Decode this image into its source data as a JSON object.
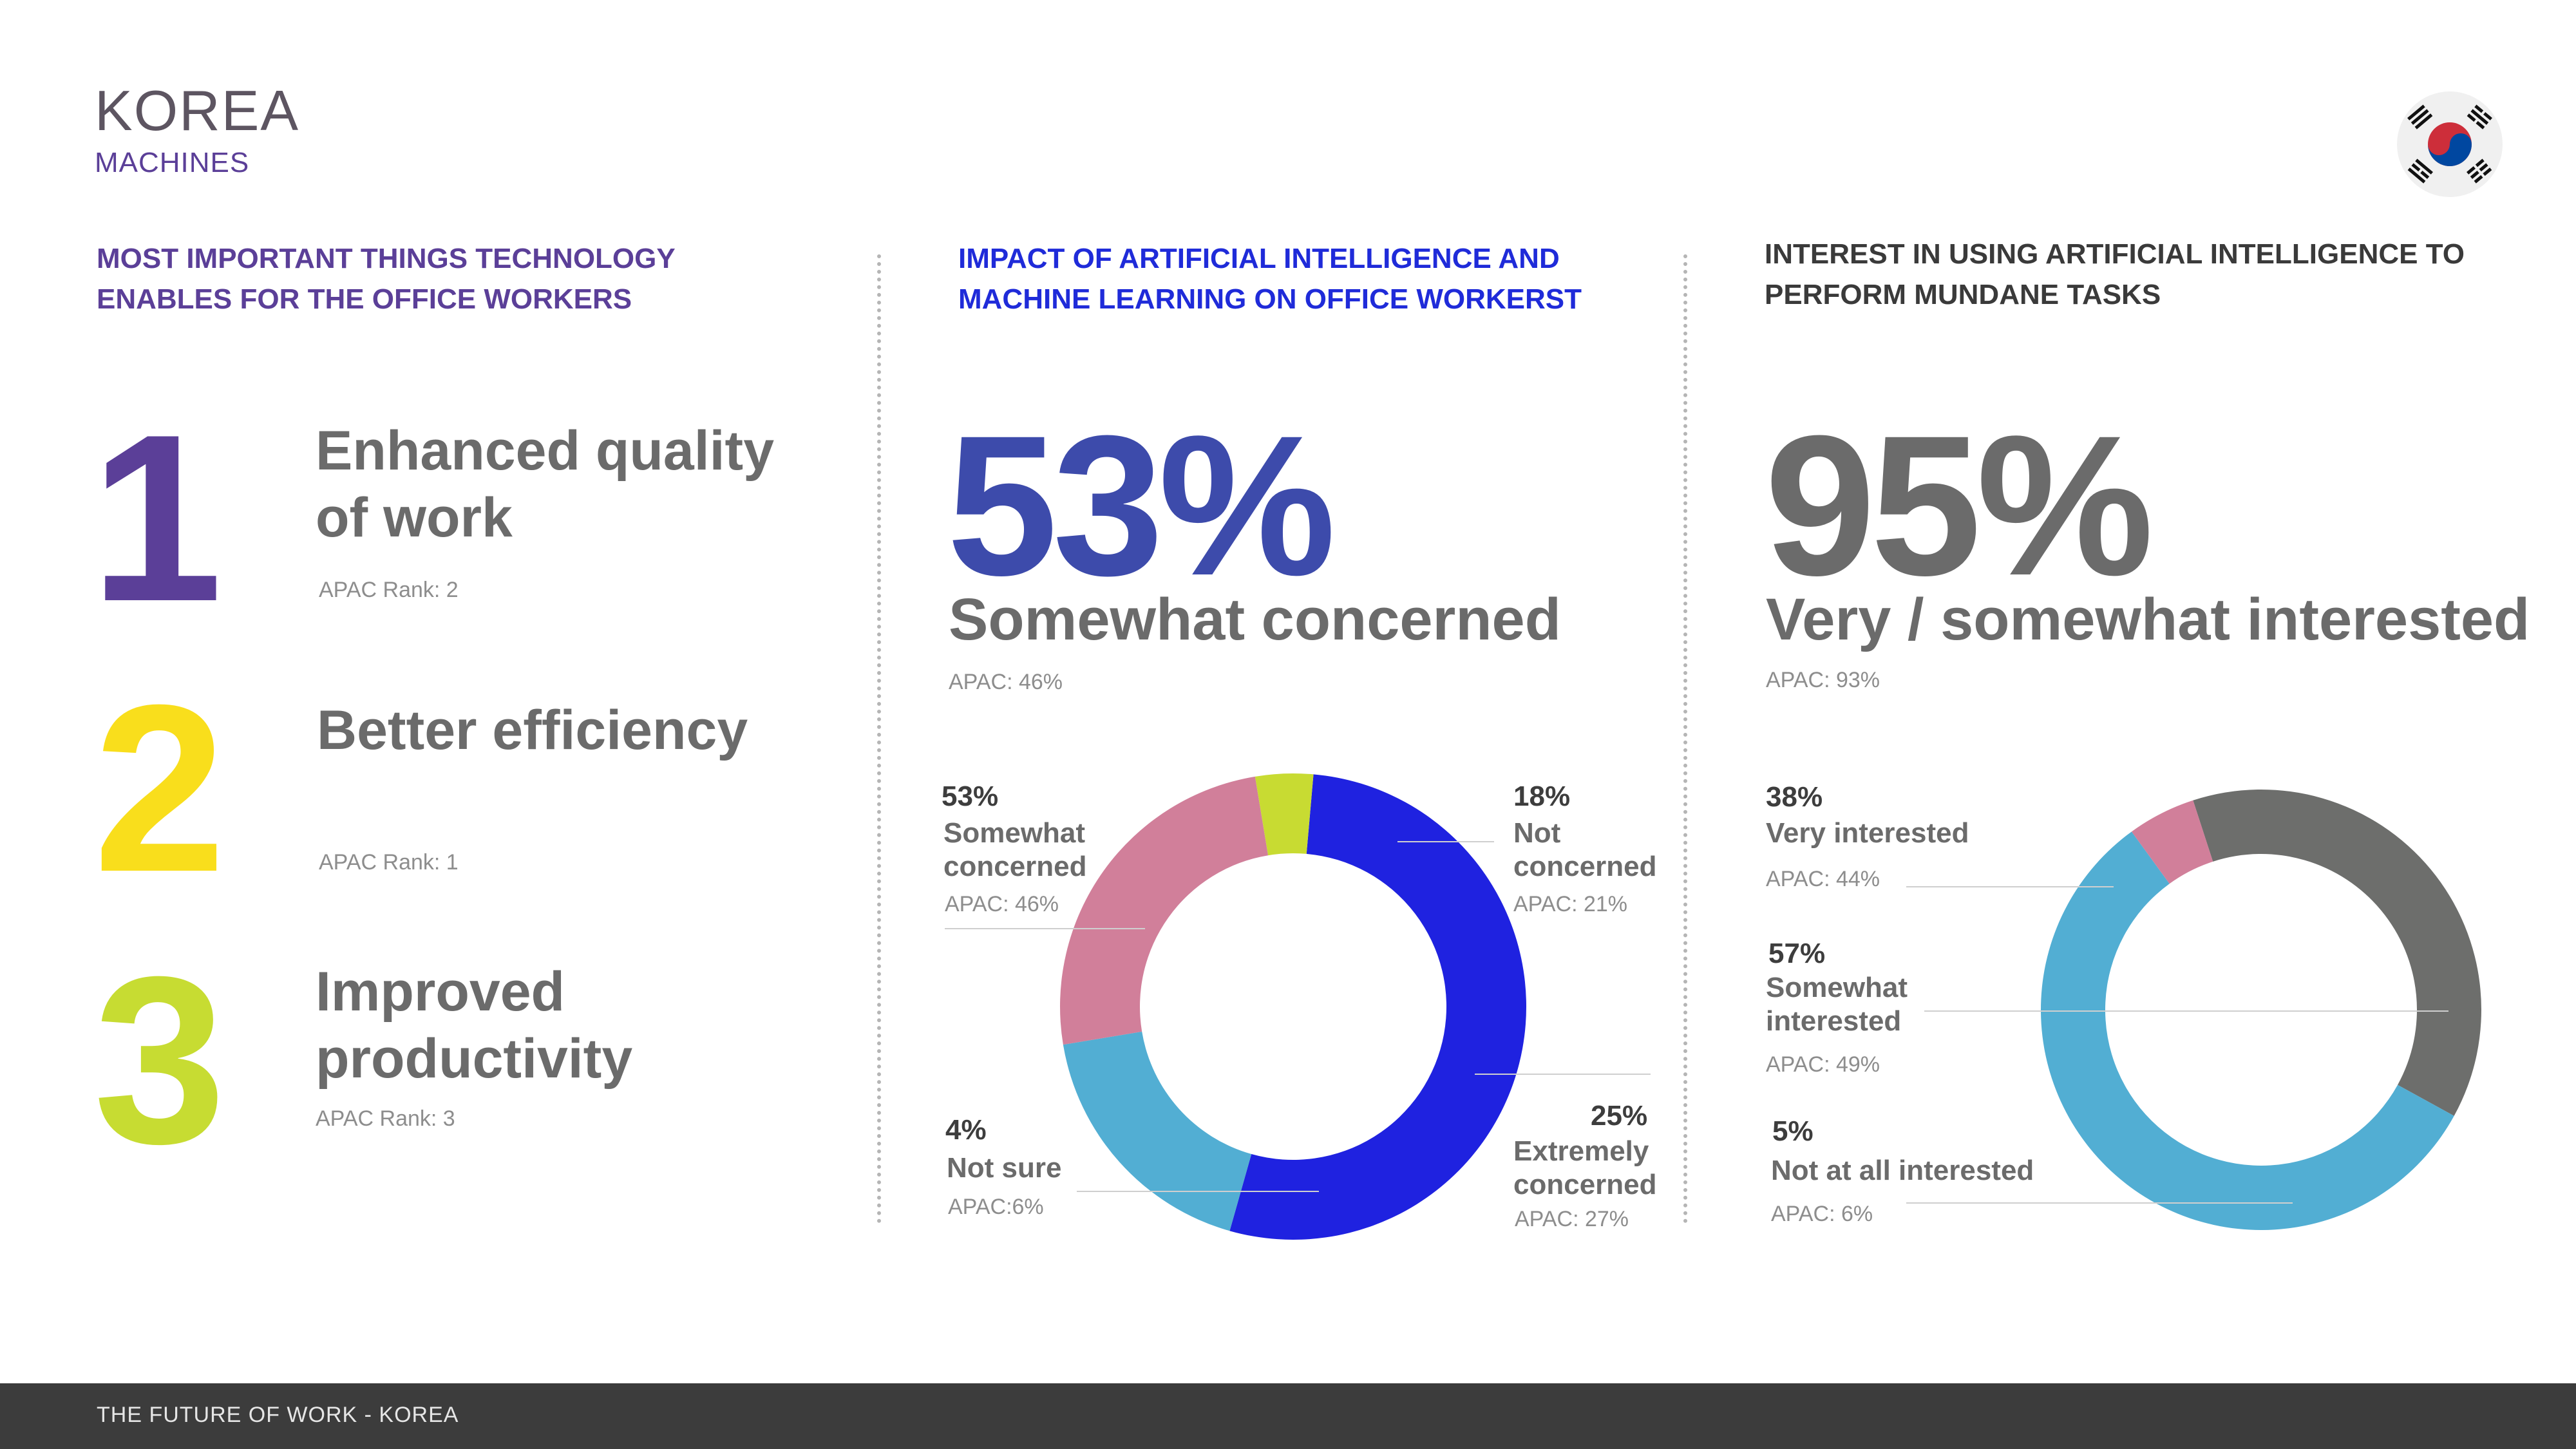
{
  "header": {
    "country": "KOREA",
    "subtitle": "MACHINES"
  },
  "sections": {
    "priorities": {
      "title": "MOST IMPORTANT THINGS TECHNOLOGY ENABLES FOR THE OFFICE WORKERS",
      "items": [
        {
          "number": "1",
          "label": "Enhanced quality of work",
          "apac": "APAC Rank: 2"
        },
        {
          "number": "2",
          "label": "Better efficiency",
          "apac": "APAC Rank: 1"
        },
        {
          "number": "3",
          "label": "Improved productivity",
          "apac": "APAC Rank: 3"
        }
      ]
    },
    "impact": {
      "title": "IMPACT OF ARTIFICIAL INTELLIGENCE AND MACHINE LEARNING ON OFFICE WORKERST",
      "headline": "53%",
      "caption": "Somewhat concerned",
      "apac": "APAC: 46%"
    },
    "interest": {
      "title": "INTEREST IN USING ARTIFICIAL INTELLIGENCE TO PERFORM MUNDANE TASKS",
      "headline": "95%",
      "caption": "Very / somewhat interested",
      "apac": "APAC: 93%"
    }
  },
  "chart_data": [
    {
      "type": "pie",
      "categories": [
        "Somewhat concerned",
        "Not concerned",
        "Extremely concerned",
        "Not sure"
      ],
      "values": [
        53,
        18,
        25,
        4
      ],
      "labels": [
        {
          "pct": "53%",
          "name": "Somewhat concerned",
          "apac": "APAC: 46%"
        },
        {
          "pct": "18%",
          "name": "Not concerned",
          "apac": "APAC: 21%"
        },
        {
          "pct": "25%",
          "name": "Extremely concerned",
          "apac": "APAC: 27%"
        },
        {
          "pct": "4%",
          "name": "Not sure",
          "apac": "APAC:6%"
        }
      ],
      "colors": [
        "#1f22e0",
        "#52aed3",
        "#d17f9a",
        "#c8db32"
      ]
    },
    {
      "type": "pie",
      "categories": [
        "Very interested",
        "Somewhat interested",
        "Not at all interested"
      ],
      "values": [
        38,
        57,
        5
      ],
      "labels": [
        {
          "pct": "38%",
          "name": "Very interested",
          "apac": "APAC: 44%"
        },
        {
          "pct": "57%",
          "name": "Somewhat interested",
          "apac": "APAC: 49%"
        },
        {
          "pct": "5%",
          "name": "Not at all interested",
          "apac": "APAC: 6%"
        }
      ],
      "colors": [
        "#6d6e6c",
        "#52aed3",
        "#d17f9a"
      ]
    }
  ],
  "footer": {
    "text": "THE FUTURE OF WORK - KOREA"
  },
  "flag": {
    "icon": "korea-flag-icon"
  }
}
